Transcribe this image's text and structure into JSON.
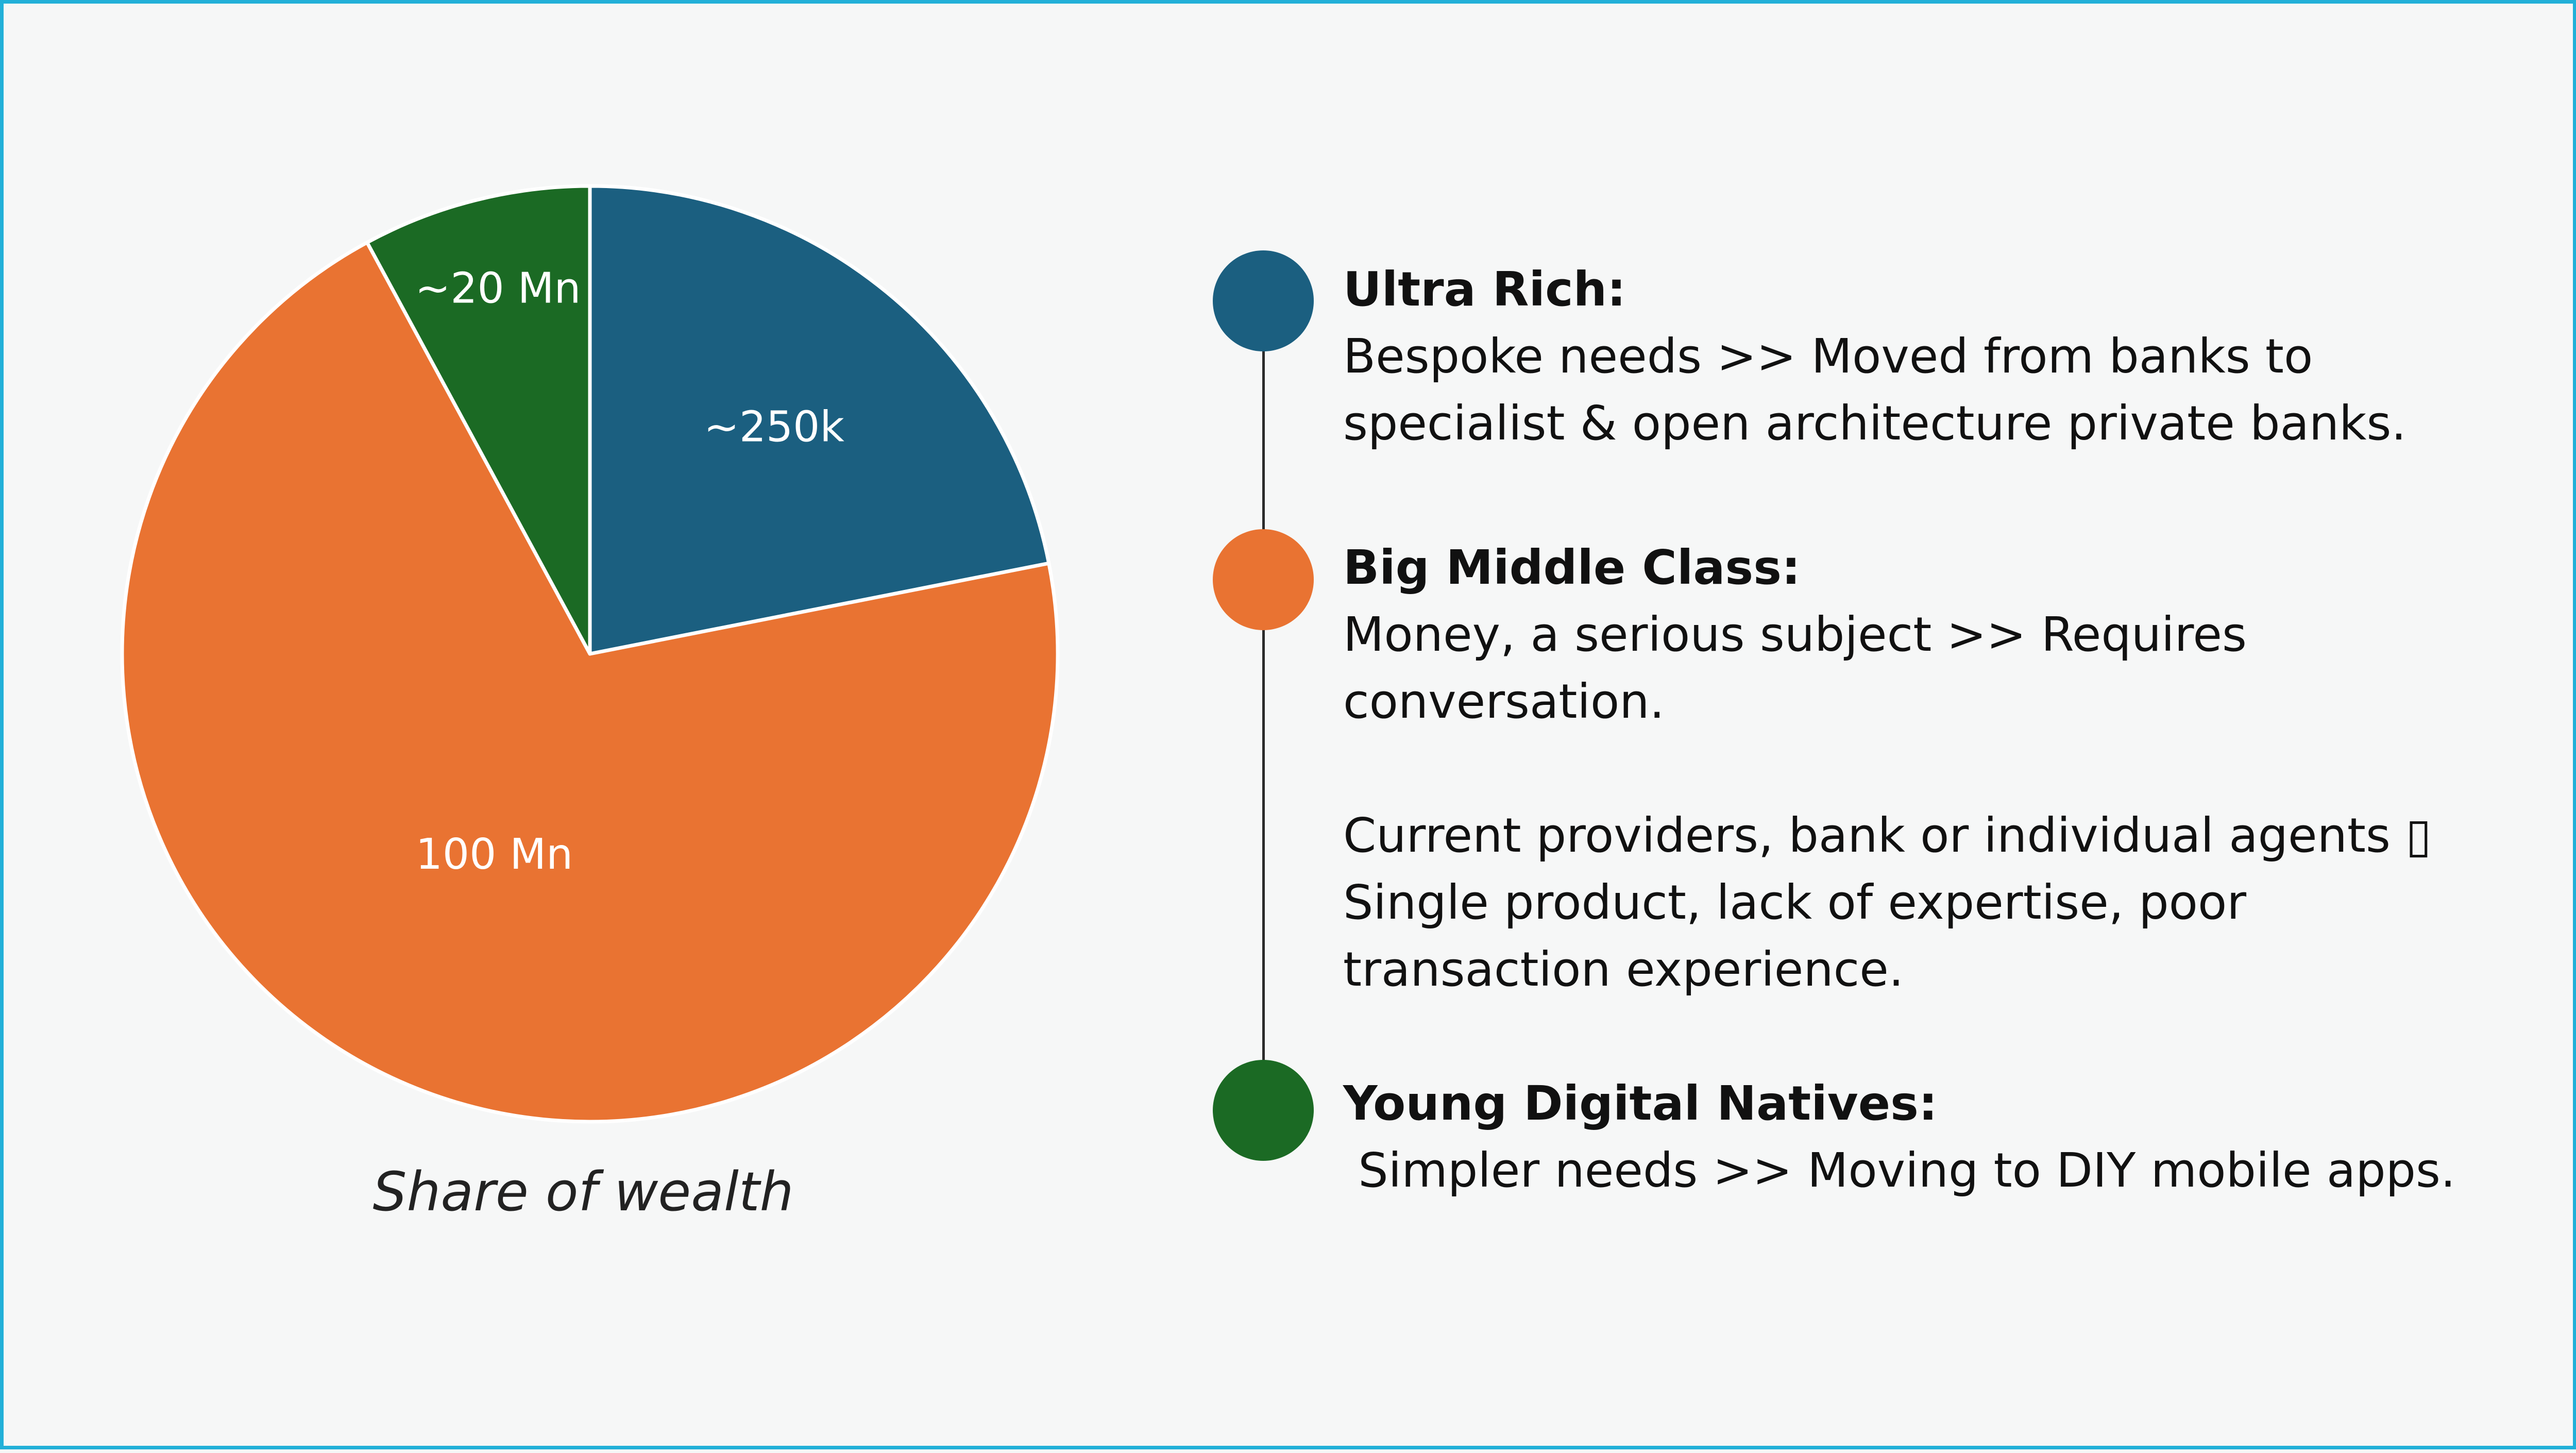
{
  "chart_data": {
    "type": "pie",
    "title": "Share of wealth",
    "slices": [
      {
        "label": "~250k",
        "value": 21.9,
        "color": "#1b5f80"
      },
      {
        "label": "100 Mn",
        "value": 70.2,
        "color": "#e97332"
      },
      {
        "label": "~20 Mn",
        "value": 7.9,
        "color": "#1b6a24"
      }
    ],
    "start_angle_deg": 0,
    "direction": "clockwise",
    "slice_border_color": "#ffffff"
  },
  "segments": [
    {
      "title": "Ultra Rich:",
      "color": "#1b5f80",
      "lines": [
        "Bespoke needs >> Moved from banks to",
        "specialist & open architecture private banks."
      ]
    },
    {
      "title": "Big Middle Class:",
      "color": "#e97332",
      "lines": [
        "Money, a serious subject >> Requires",
        "conversation.",
        "",
        "Current providers, bank or individual agents ▯",
        "Single product, lack of expertise, poor",
        "transaction experience."
      ]
    },
    {
      "title": "Young Digital Natives:",
      "color": "#1b6a24",
      "lines": [
        " Simpler needs >> Moving to DIY mobile apps."
      ]
    }
  ]
}
